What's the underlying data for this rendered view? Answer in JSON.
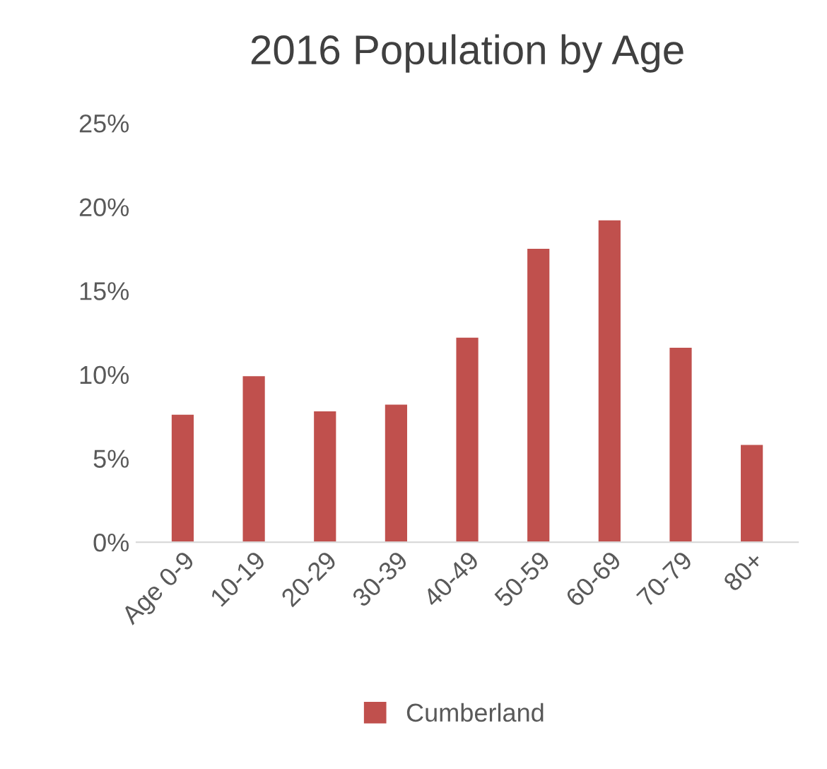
{
  "chart_data": {
    "type": "bar",
    "title": "2016 Population by Age",
    "categories": [
      "Age 0-9",
      "10-19",
      "20-29",
      "30-39",
      "40-49",
      "50-59",
      "60-69",
      "70-79",
      "80+"
    ],
    "series": [
      {
        "name": "Cumberland",
        "color": "#c0504d",
        "values": [
          7.6,
          9.9,
          7.8,
          8.2,
          12.2,
          17.5,
          19.2,
          11.6,
          5.8
        ]
      }
    ],
    "ylim": [
      0,
      25
    ],
    "yticks": [
      {
        "value": 0,
        "label": "0%"
      },
      {
        "value": 5,
        "label": "5%"
      },
      {
        "value": 10,
        "label": "10%"
      },
      {
        "value": 15,
        "label": "15%"
      },
      {
        "value": 20,
        "label": "20%"
      },
      {
        "value": 25,
        "label": "25%"
      }
    ],
    "grid": false,
    "legend": "bottom"
  }
}
